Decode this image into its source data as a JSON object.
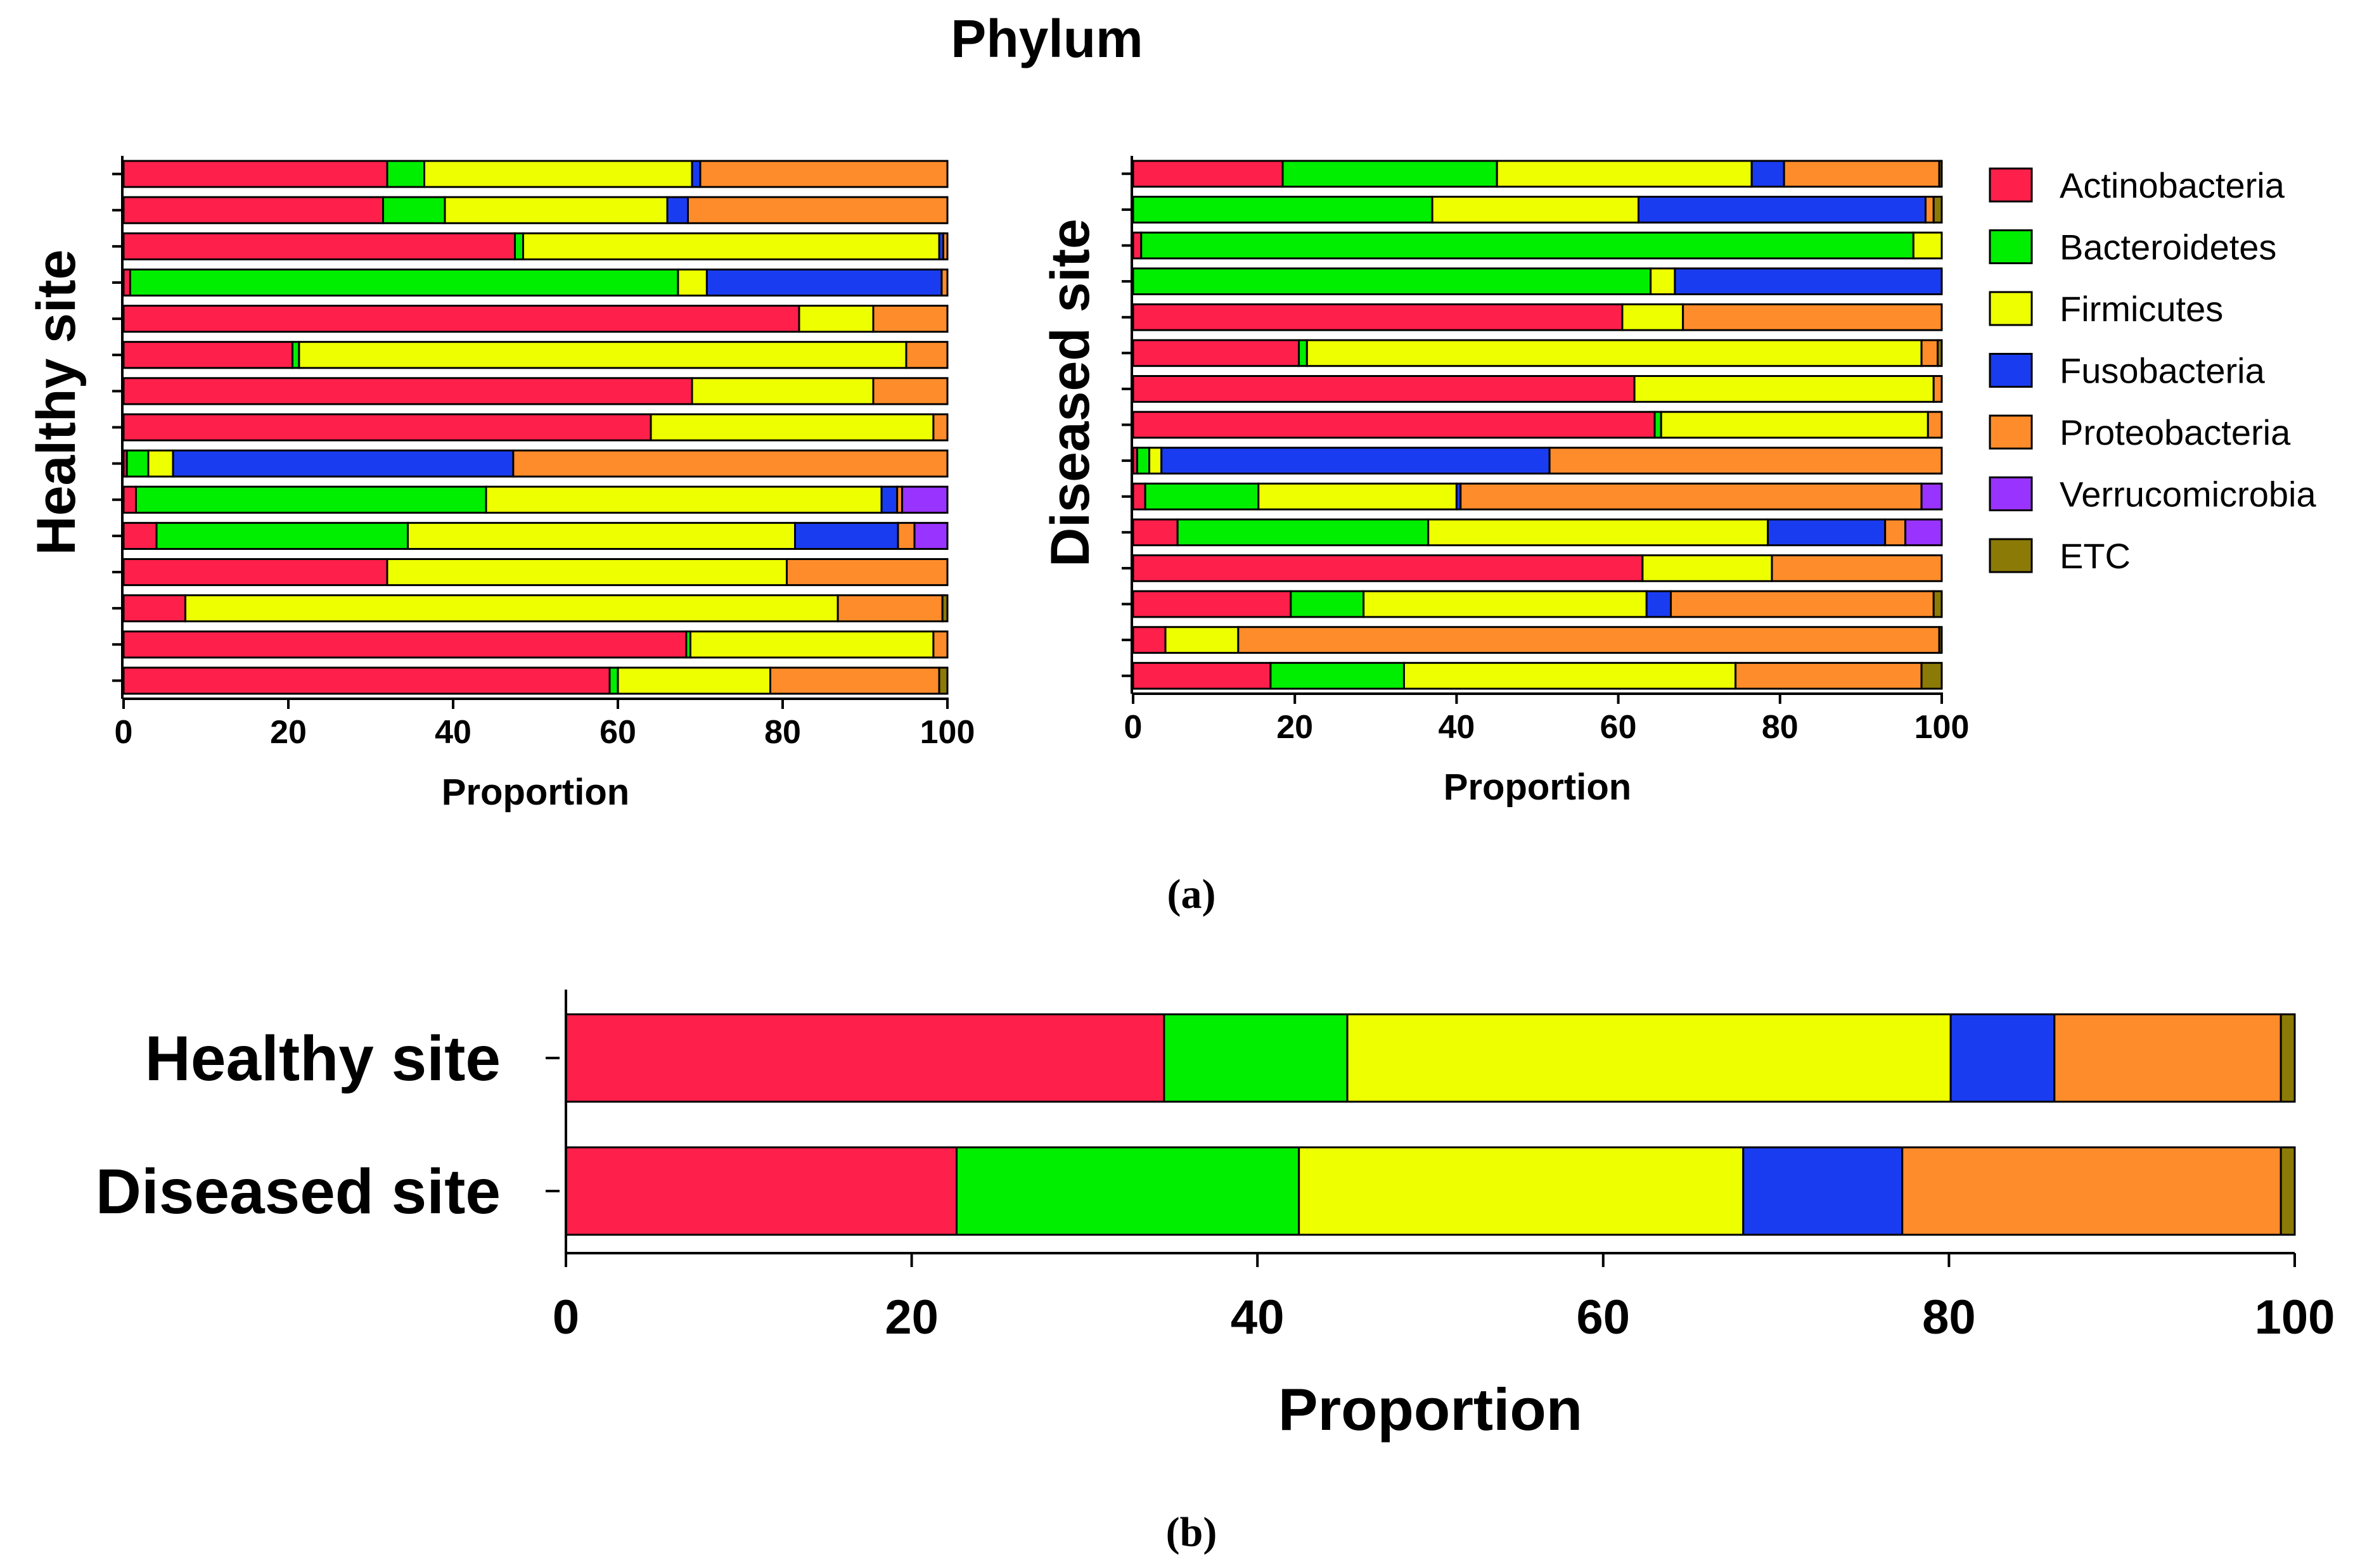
{
  "figure_title": "Phylum",
  "panel_labels": {
    "a": "(a)",
    "b": "(b)"
  },
  "legend": [
    {
      "label": "Actinobacteria",
      "color": "#ff1f4b"
    },
    {
      "label": "Bacteroidetes",
      "color": "#00ee00"
    },
    {
      "label": "Firmicutes",
      "color": "#eeff00"
    },
    {
      "label": "Fusobacteria",
      "color": "#1a3cf0"
    },
    {
      "label": "Proteobacteria",
      "color": "#ff8c2a"
    },
    {
      "label": "Verrucomicrobia",
      "color": "#9933ff"
    },
    {
      "label": "ETC",
      "color": "#8b7a06"
    }
  ],
  "chart_data": [
    {
      "type": "bar",
      "stacked": true,
      "orientation": "horizontal",
      "ylabel": "Healthy site",
      "xlabel": "Proportion",
      "xlim": [
        0,
        100
      ],
      "xticks": [
        0,
        20,
        40,
        60,
        80,
        100
      ],
      "series_order": [
        "Actinobacteria",
        "Bacteroidetes",
        "Firmicutes",
        "Fusobacteria",
        "Proteobacteria",
        "Verrucomicrobia",
        "ETC"
      ],
      "rows": [
        [
          32,
          4.5,
          32.5,
          1,
          30,
          0,
          0
        ],
        [
          31.5,
          7.5,
          27,
          2.5,
          31.5,
          0,
          0
        ],
        [
          47.5,
          1,
          50.5,
          0.5,
          0.5,
          0,
          0
        ],
        [
          0.8,
          66.5,
          3.5,
          28.5,
          0.7,
          0,
          0
        ],
        [
          82,
          0,
          9,
          0,
          9,
          0,
          0
        ],
        [
          20.5,
          0.8,
          73.7,
          0,
          5,
          0,
          0
        ],
        [
          69,
          0,
          22,
          0,
          9,
          0,
          0
        ],
        [
          64,
          0,
          34.3,
          0,
          1.7,
          0,
          0
        ],
        [
          0.4,
          2.6,
          3,
          41.3,
          52.7,
          0,
          0
        ],
        [
          1.5,
          42.5,
          48,
          1.9,
          0.6,
          5.5,
          0
        ],
        [
          4,
          30.5,
          47,
          12.5,
          2,
          4,
          0
        ],
        [
          32,
          0,
          48.5,
          0,
          19.5,
          0,
          0
        ],
        [
          7.5,
          0,
          79.2,
          0,
          12.7,
          0,
          0.6
        ],
        [
          68.3,
          0.5,
          29.5,
          0,
          1.7,
          0,
          0
        ],
        [
          59,
          1,
          18.5,
          0,
          20.5,
          0,
          1
        ]
      ]
    },
    {
      "type": "bar",
      "stacked": true,
      "orientation": "horizontal",
      "ylabel": "Diseased site",
      "xlabel": "Proportion",
      "xlim": [
        0,
        100
      ],
      "xticks": [
        0,
        20,
        40,
        60,
        80,
        100
      ],
      "series_order": [
        "Actinobacteria",
        "Bacteroidetes",
        "Firmicutes",
        "Fusobacteria",
        "Proteobacteria",
        "Verrucomicrobia",
        "ETC"
      ],
      "rows": [
        [
          18.5,
          26.5,
          31.5,
          4,
          19.2,
          0,
          0.3
        ],
        [
          0,
          37,
          25.5,
          35.5,
          1,
          0,
          1
        ],
        [
          1,
          95.5,
          3.5,
          0,
          0,
          0,
          0
        ],
        [
          0,
          64,
          3,
          33,
          0,
          0,
          0
        ],
        [
          60.5,
          0,
          7.5,
          0,
          32,
          0,
          0
        ],
        [
          20.5,
          1,
          76,
          0,
          2,
          0,
          0.5
        ],
        [
          62,
          0,
          37,
          0,
          1,
          0,
          0
        ],
        [
          64.5,
          0.8,
          33,
          0,
          1.7,
          0,
          0
        ],
        [
          0.5,
          1.5,
          1.5,
          48,
          48.5,
          0,
          0
        ],
        [
          1.5,
          14,
          24.5,
          0.5,
          57,
          2.5,
          0
        ],
        [
          5.5,
          31,
          42,
          14.5,
          2.5,
          4.5,
          0
        ],
        [
          63,
          0,
          16,
          0,
          21,
          0,
          0
        ],
        [
          19.5,
          9,
          35,
          3,
          32.5,
          0,
          1
        ],
        [
          4,
          0,
          9,
          0,
          86.7,
          0,
          0.3
        ],
        [
          17,
          16.5,
          41,
          0,
          23,
          0,
          2.5
        ]
      ]
    },
    {
      "type": "bar",
      "stacked": true,
      "orientation": "horizontal",
      "xlabel": "Proportion",
      "xlim": [
        0,
        100
      ],
      "xticks": [
        0,
        20,
        40,
        60,
        80,
        100
      ],
      "categories": [
        "Healthy site",
        "Diseased site"
      ],
      "series": [
        {
          "name": "Actinobacteria",
          "values": [
            34.6,
            22.6
          ]
        },
        {
          "name": "Bacteroidetes",
          "values": [
            10.6,
            19.8
          ]
        },
        {
          "name": "Firmicutes",
          "values": [
            34.9,
            25.7
          ]
        },
        {
          "name": "Fusobacteria",
          "values": [
            6.0,
            9.2
          ]
        },
        {
          "name": "Proteobacteria",
          "values": [
            13.1,
            21.9
          ]
        },
        {
          "name": "Verrucomicrobia",
          "values": [
            0,
            0
          ]
        },
        {
          "name": "ETC",
          "values": [
            0.8,
            0.8
          ]
        }
      ]
    }
  ]
}
